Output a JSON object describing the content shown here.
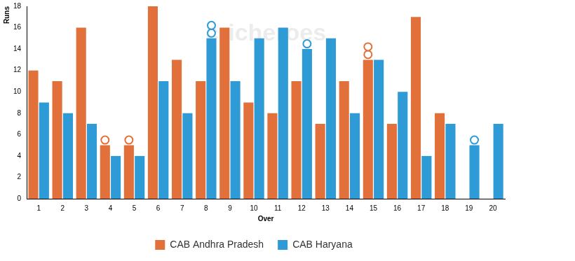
{
  "chart_data": {
    "type": "bar",
    "x_label": "Over",
    "y_label": "Runs",
    "categories": [
      "1",
      "2",
      "3",
      "4",
      "5",
      "6",
      "7",
      "8",
      "9",
      "10",
      "11",
      "12",
      "13",
      "14",
      "15",
      "16",
      "17",
      "18",
      "19",
      "20"
    ],
    "series": [
      {
        "name": "CAB Andhra Pradesh",
        "color": "#e2703a",
        "values": [
          12,
          11,
          16,
          5,
          5,
          18,
          13,
          11,
          16,
          9,
          8,
          11,
          7,
          11,
          13,
          7,
          17,
          8,
          null,
          null
        ],
        "wickets": [
          0,
          0,
          0,
          1,
          1,
          0,
          0,
          0,
          0,
          0,
          0,
          0,
          0,
          0,
          2,
          0,
          0,
          0,
          0,
          0
        ]
      },
      {
        "name": "CAB Haryana",
        "color": "#2e9bd6",
        "values": [
          9,
          8,
          7,
          4,
          4,
          11,
          8,
          15,
          11,
          15,
          16,
          14,
          15,
          8,
          13,
          10,
          4,
          7,
          5,
          7
        ],
        "wickets": [
          0,
          0,
          0,
          0,
          0,
          0,
          0,
          2,
          0,
          0,
          0,
          1,
          0,
          0,
          0,
          0,
          0,
          0,
          1,
          0
        ]
      }
    ],
    "ylim": [
      0,
      18
    ],
    "yticks": [
      0,
      2,
      4,
      6,
      8,
      10,
      12,
      14,
      16,
      18
    ],
    "grid": false,
    "legend": "bottom",
    "annotations": [
      "cricheroes"
    ]
  }
}
